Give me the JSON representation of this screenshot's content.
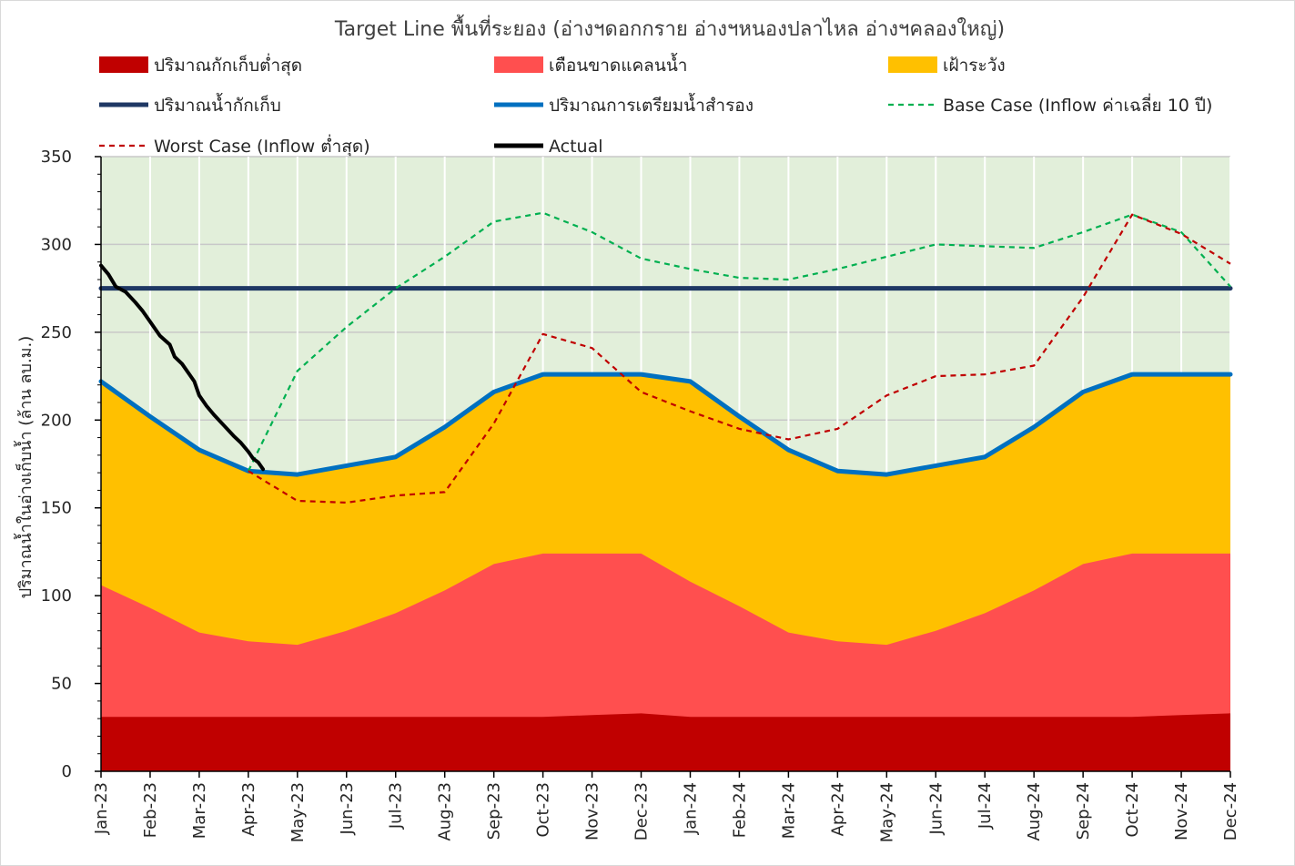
{
  "chart_data": {
    "type": "area",
    "title": "Target Line พื้นที่ระยอง (อ่างฯดอกกราย อ่างฯหนองปลาไหล อ่างฯคลองใหญ่)",
    "xlabel": "",
    "ylabel": "ปริมาณน้ำในอ่างเก็บน้ำ (ล้าน ลบ.ม.)",
    "ylim": [
      0,
      350
    ],
    "yticks": [
      0,
      50,
      100,
      150,
      200,
      250,
      300,
      350
    ],
    "categories": [
      "Jan-23",
      "Feb-23",
      "Mar-23",
      "Apr-23",
      "May-23",
      "Jun-23",
      "Jul-23",
      "Aug-23",
      "Sep-23",
      "Oct-23",
      "Nov-23",
      "Dec-23",
      "Jan-24",
      "Feb-24",
      "Mar-24",
      "Apr-24",
      "May-24",
      "Jun-24",
      "Jul-24",
      "Aug-24",
      "Sep-24",
      "Oct-24",
      "Nov-24",
      "Dec-24"
    ],
    "background_color": "#e2efda",
    "grid": true,
    "legend_position": "top",
    "areas": [
      {
        "name": "ปริมาณกักเก็บต่ำสุด",
        "color": "#c00000",
        "values": [
          31,
          31,
          31,
          31,
          31,
          31,
          31,
          31,
          31,
          31,
          32,
          33,
          31,
          31,
          31,
          31,
          31,
          31,
          31,
          31,
          31,
          31,
          32,
          33
        ]
      },
      {
        "name": "เตือนขาดแคลนน้ำ",
        "color": "#ff4f4f",
        "values": [
          106,
          93,
          79,
          74,
          72,
          80,
          90,
          103,
          118,
          124,
          124,
          124,
          108,
          94,
          79,
          74,
          72,
          80,
          90,
          103,
          118,
          124,
          124,
          124
        ]
      },
      {
        "name": "เฝ้าระวัง",
        "color": "#ffc000",
        "values": [
          222,
          202,
          183,
          171,
          169,
          174,
          179,
          196,
          216,
          226,
          226,
          226,
          222,
          202,
          183,
          171,
          169,
          174,
          179,
          196,
          216,
          226,
          226,
          226
        ]
      }
    ],
    "series": [
      {
        "name": "ปริมาณน้ำกักเก็บ",
        "color": "#1f3864",
        "style": "solid",
        "width": 5,
        "x": [
          0,
          23
        ],
        "values": [
          275,
          275
        ]
      },
      {
        "name": "ปริมาณการเตรียมน้ำสำรอง",
        "color": "#0070c0",
        "style": "solid",
        "width": 5,
        "x": [
          0,
          1,
          2,
          3,
          4,
          5,
          6,
          7,
          8,
          9,
          10,
          11,
          12,
          13,
          14,
          15,
          16,
          17,
          18,
          19,
          20,
          21,
          22,
          23
        ],
        "values": [
          222,
          202,
          183,
          171,
          169,
          174,
          179,
          196,
          216,
          226,
          226,
          226,
          222,
          202,
          183,
          171,
          169,
          174,
          179,
          196,
          216,
          226,
          226,
          226
        ]
      },
      {
        "name": "Base Case (Inflow ค่าเฉลี่ย 10 ปี)",
        "color": "#00b050",
        "style": "dashed",
        "width": 2.2,
        "x": [
          3,
          4,
          5,
          6,
          7,
          8,
          9,
          10,
          11,
          12,
          13,
          14,
          15,
          16,
          17,
          18,
          19,
          20,
          21,
          22,
          23
        ],
        "values": [
          171,
          228,
          253,
          275,
          293,
          313,
          318,
          307,
          292,
          286,
          281,
          280,
          286,
          293,
          300,
          299,
          298,
          307,
          317,
          307,
          276
        ]
      },
      {
        "name": "Worst Case (Inflow ต่ำสุด)",
        "color": "#c00000",
        "style": "dashed",
        "width": 2.2,
        "x": [
          3,
          4,
          5,
          6,
          7,
          8,
          9,
          10,
          11,
          12,
          13,
          14,
          15,
          16,
          17,
          18,
          19,
          20,
          21,
          22,
          23
        ],
        "values": [
          171,
          154,
          153,
          157,
          159,
          198,
          249,
          241,
          216,
          205,
          195,
          189,
          195,
          214,
          225,
          226,
          231,
          270,
          317,
          306,
          289
        ]
      },
      {
        "name": "Actual",
        "color": "#000000",
        "style": "solid",
        "width": 4,
        "x": [
          0,
          0.15,
          0.3,
          0.5,
          0.7,
          0.85,
          1.0,
          1.2,
          1.4,
          1.5,
          1.65,
          1.8,
          1.9,
          2.0,
          2.15,
          2.3,
          2.5,
          2.7,
          2.85,
          3.0,
          3.1,
          3.2,
          3.3
        ],
        "values": [
          288,
          283,
          276,
          273,
          267,
          262,
          256,
          248,
          243,
          236,
          232,
          226,
          222,
          214,
          208,
          203,
          197,
          191,
          187,
          182,
          178,
          176,
          172
        ]
      }
    ],
    "legend": [
      {
        "label": "ปริมาณกักเก็บต่ำสุด",
        "kind": "box",
        "color": "#c00000"
      },
      {
        "label": "เตือนขาดแคลนน้ำ",
        "kind": "box",
        "color": "#ff4f4f"
      },
      {
        "label": "เฝ้าระวัง",
        "kind": "box",
        "color": "#ffc000"
      },
      {
        "label": "ปริมาณน้ำกักเก็บ",
        "kind": "line",
        "color": "#1f3864"
      },
      {
        "label": "ปริมาณการเตรียมน้ำสำรอง",
        "kind": "line",
        "color": "#0070c0"
      },
      {
        "label": "Base Case (Inflow ค่าเฉลี่ย 10 ปี)",
        "kind": "dash",
        "color": "#00b050"
      },
      {
        "label": "Worst Case (Inflow ต่ำสุด)",
        "kind": "dash",
        "color": "#c00000"
      },
      {
        "label": "Actual",
        "kind": "line",
        "color": "#000000"
      }
    ]
  }
}
